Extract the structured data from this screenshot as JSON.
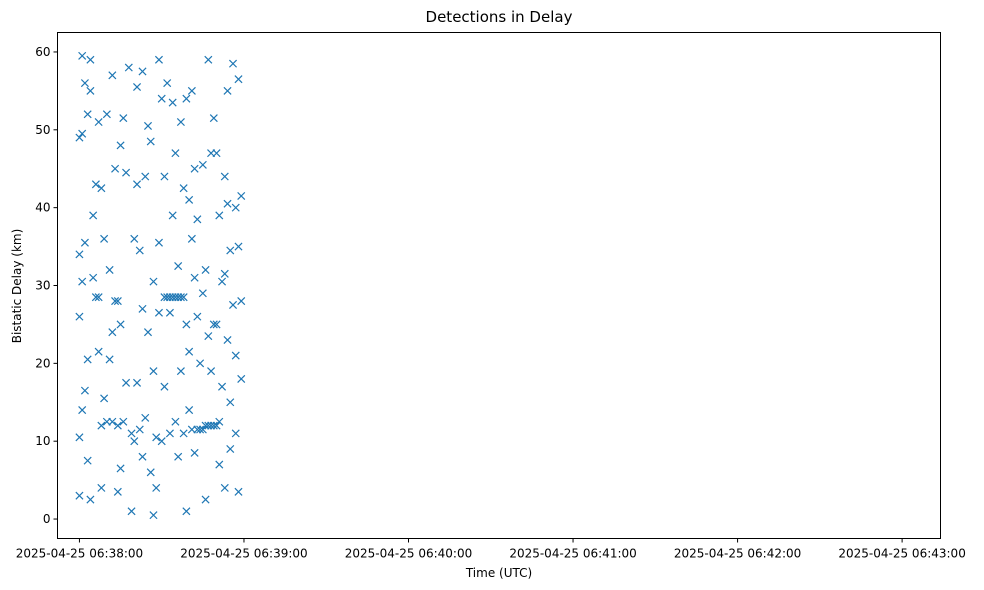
{
  "chart_data": {
    "type": "scatter",
    "title": "Detections in Delay",
    "xlabel": "Time (UTC)",
    "ylabel": "Bistatic Delay (km)",
    "x_unit": "time",
    "xlim": [
      "2025-04-25 06:37:52",
      "2025-04-25 06:43:14"
    ],
    "ylim": [
      -2.5,
      62.5
    ],
    "xticks": [
      {
        "value": "2025-04-25 06:38:00",
        "label": "2025-04-25 06:38:00"
      },
      {
        "value": "2025-04-25 06:39:00",
        "label": "2025-04-25 06:39:00"
      },
      {
        "value": "2025-04-25 06:40:00",
        "label": "2025-04-25 06:40:00"
      },
      {
        "value": "2025-04-25 06:41:00",
        "label": "2025-04-25 06:41:00"
      },
      {
        "value": "2025-04-25 06:42:00",
        "label": "2025-04-25 06:42:00"
      },
      {
        "value": "2025-04-25 06:43:00",
        "label": "2025-04-25 06:43:00"
      }
    ],
    "yticks": [
      {
        "value": 0,
        "label": "0"
      },
      {
        "value": 10,
        "label": "10"
      },
      {
        "value": 20,
        "label": "20"
      },
      {
        "value": 30,
        "label": "30"
      },
      {
        "value": 40,
        "label": "40"
      },
      {
        "value": 50,
        "label": "50"
      },
      {
        "value": 60,
        "label": "60"
      }
    ],
    "grid": false,
    "marker": "x",
    "color": "#1f77b4",
    "series": [
      {
        "points": [
          {
            "x": "2025-04-25 06:38:00",
            "y": 10.5
          },
          {
            "x": "2025-04-25 06:38:00",
            "y": 26.0
          },
          {
            "x": "2025-04-25 06:38:00",
            "y": 34.0
          },
          {
            "x": "2025-04-25 06:38:00",
            "y": 49.0
          },
          {
            "x": "2025-04-25 06:38:00",
            "y": 3.0
          },
          {
            "x": "2025-04-25 06:38:01",
            "y": 59.5
          },
          {
            "x": "2025-04-25 06:38:01",
            "y": 30.5
          },
          {
            "x": "2025-04-25 06:38:01",
            "y": 14.0
          },
          {
            "x": "2025-04-25 06:38:01",
            "y": 49.5
          },
          {
            "x": "2025-04-25 06:38:02",
            "y": 56.0
          },
          {
            "x": "2025-04-25 06:38:02",
            "y": 35.5
          },
          {
            "x": "2025-04-25 06:38:02",
            "y": 16.5
          },
          {
            "x": "2025-04-25 06:38:03",
            "y": 20.5
          },
          {
            "x": "2025-04-25 06:38:03",
            "y": 7.5
          },
          {
            "x": "2025-04-25 06:38:03",
            "y": 52.0
          },
          {
            "x": "2025-04-25 06:38:04",
            "y": 59.0
          },
          {
            "x": "2025-04-25 06:38:04",
            "y": 2.5
          },
          {
            "x": "2025-04-25 06:38:04",
            "y": 55.0
          },
          {
            "x": "2025-04-25 06:38:05",
            "y": 39.0
          },
          {
            "x": "2025-04-25 06:38:05",
            "y": 31.0
          },
          {
            "x": "2025-04-25 06:38:06",
            "y": 28.5
          },
          {
            "x": "2025-04-25 06:38:06",
            "y": 43.0
          },
          {
            "x": "2025-04-25 06:38:07",
            "y": 28.5
          },
          {
            "x": "2025-04-25 06:38:07",
            "y": 51.0
          },
          {
            "x": "2025-04-25 06:38:07",
            "y": 21.5
          },
          {
            "x": "2025-04-25 06:38:08",
            "y": 12.0
          },
          {
            "x": "2025-04-25 06:38:08",
            "y": 42.5
          },
          {
            "x": "2025-04-25 06:38:08",
            "y": 4.0
          },
          {
            "x": "2025-04-25 06:38:09",
            "y": 15.5
          },
          {
            "x": "2025-04-25 06:38:09",
            "y": 36.0
          },
          {
            "x": "2025-04-25 06:38:10",
            "y": 12.5
          },
          {
            "x": "2025-04-25 06:38:10",
            "y": 52.0
          },
          {
            "x": "2025-04-25 06:38:11",
            "y": 20.5
          },
          {
            "x": "2025-04-25 06:38:11",
            "y": 32.0
          },
          {
            "x": "2025-04-25 06:38:12",
            "y": 24.0
          },
          {
            "x": "2025-04-25 06:38:12",
            "y": 12.5
          },
          {
            "x": "2025-04-25 06:38:12",
            "y": 57.0
          },
          {
            "x": "2025-04-25 06:38:13",
            "y": 28.0
          },
          {
            "x": "2025-04-25 06:38:13",
            "y": 45.0
          },
          {
            "x": "2025-04-25 06:38:14",
            "y": 28.0
          },
          {
            "x": "2025-04-25 06:38:14",
            "y": 3.5
          },
          {
            "x": "2025-04-25 06:38:14",
            "y": 12.0
          },
          {
            "x": "2025-04-25 06:38:15",
            "y": 6.5
          },
          {
            "x": "2025-04-25 06:38:15",
            "y": 48.0
          },
          {
            "x": "2025-04-25 06:38:15",
            "y": 25.0
          },
          {
            "x": "2025-04-25 06:38:16",
            "y": 12.5
          },
          {
            "x": "2025-04-25 06:38:16",
            "y": 51.5
          },
          {
            "x": "2025-04-25 06:38:17",
            "y": 17.5
          },
          {
            "x": "2025-04-25 06:38:17",
            "y": 44.5
          },
          {
            "x": "2025-04-25 06:38:18",
            "y": 58.0
          },
          {
            "x": "2025-04-25 06:38:19",
            "y": 1.0
          },
          {
            "x": "2025-04-25 06:38:19",
            "y": 11.0
          },
          {
            "x": "2025-04-25 06:38:20",
            "y": 36.0
          },
          {
            "x": "2025-04-25 06:38:20",
            "y": 10.0
          },
          {
            "x": "2025-04-25 06:38:21",
            "y": 55.5
          },
          {
            "x": "2025-04-25 06:38:21",
            "y": 43.0
          },
          {
            "x": "2025-04-25 06:38:21",
            "y": 17.5
          },
          {
            "x": "2025-04-25 06:38:22",
            "y": 34.5
          },
          {
            "x": "2025-04-25 06:38:22",
            "y": 11.5
          },
          {
            "x": "2025-04-25 06:38:23",
            "y": 57.5
          },
          {
            "x": "2025-04-25 06:38:23",
            "y": 27.0
          },
          {
            "x": "2025-04-25 06:38:23",
            "y": 8.0
          },
          {
            "x": "2025-04-25 06:38:24",
            "y": 44.0
          },
          {
            "x": "2025-04-25 06:38:24",
            "y": 13.0
          },
          {
            "x": "2025-04-25 06:38:25",
            "y": 50.5
          },
          {
            "x": "2025-04-25 06:38:25",
            "y": 24.0
          },
          {
            "x": "2025-04-25 06:38:26",
            "y": 6.0
          },
          {
            "x": "2025-04-25 06:38:26",
            "y": 48.5
          },
          {
            "x": "2025-04-25 06:38:27",
            "y": 0.5
          },
          {
            "x": "2025-04-25 06:38:27",
            "y": 30.5
          },
          {
            "x": "2025-04-25 06:38:27",
            "y": 19.0
          },
          {
            "x": "2025-04-25 06:38:28",
            "y": 10.5
          },
          {
            "x": "2025-04-25 06:38:28",
            "y": 4.0
          },
          {
            "x": "2025-04-25 06:38:29",
            "y": 35.5
          },
          {
            "x": "2025-04-25 06:38:29",
            "y": 59.0
          },
          {
            "x": "2025-04-25 06:38:29",
            "y": 26.5
          },
          {
            "x": "2025-04-25 06:38:30",
            "y": 54.0
          },
          {
            "x": "2025-04-25 06:38:30",
            "y": 10.0
          },
          {
            "x": "2025-04-25 06:38:31",
            "y": 28.5
          },
          {
            "x": "2025-04-25 06:38:31",
            "y": 17.0
          },
          {
            "x": "2025-04-25 06:38:31",
            "y": 44.0
          },
          {
            "x": "2025-04-25 06:38:32",
            "y": 28.5
          },
          {
            "x": "2025-04-25 06:38:32",
            "y": 56.0
          },
          {
            "x": "2025-04-25 06:38:33",
            "y": 28.5
          },
          {
            "x": "2025-04-25 06:38:33",
            "y": 11.0
          },
          {
            "x": "2025-04-25 06:38:33",
            "y": 26.5
          },
          {
            "x": "2025-04-25 06:38:34",
            "y": 28.5
          },
          {
            "x": "2025-04-25 06:38:34",
            "y": 39.0
          },
          {
            "x": "2025-04-25 06:38:34",
            "y": 53.5
          },
          {
            "x": "2025-04-25 06:38:35",
            "y": 28.5
          },
          {
            "x": "2025-04-25 06:38:35",
            "y": 12.5
          },
          {
            "x": "2025-04-25 06:38:35",
            "y": 47.0
          },
          {
            "x": "2025-04-25 06:38:36",
            "y": 28.5
          },
          {
            "x": "2025-04-25 06:38:36",
            "y": 8.0
          },
          {
            "x": "2025-04-25 06:38:36",
            "y": 32.5
          },
          {
            "x": "2025-04-25 06:38:37",
            "y": 28.5
          },
          {
            "x": "2025-04-25 06:38:37",
            "y": 51.0
          },
          {
            "x": "2025-04-25 06:38:37",
            "y": 19.0
          },
          {
            "x": "2025-04-25 06:38:38",
            "y": 28.5
          },
          {
            "x": "2025-04-25 06:38:38",
            "y": 11.0
          },
          {
            "x": "2025-04-25 06:38:38",
            "y": 42.5
          },
          {
            "x": "2025-04-25 06:38:39",
            "y": 54.0
          },
          {
            "x": "2025-04-25 06:38:39",
            "y": 25.0
          },
          {
            "x": "2025-04-25 06:38:39",
            "y": 1.0
          },
          {
            "x": "2025-04-25 06:38:40",
            "y": 41.0
          },
          {
            "x": "2025-04-25 06:38:40",
            "y": 14.0
          },
          {
            "x": "2025-04-25 06:38:40",
            "y": 21.5
          },
          {
            "x": "2025-04-25 06:38:41",
            "y": 55.0
          },
          {
            "x": "2025-04-25 06:38:41",
            "y": 36.0
          },
          {
            "x": "2025-04-25 06:38:41",
            "y": 11.5
          },
          {
            "x": "2025-04-25 06:38:42",
            "y": 31.0
          },
          {
            "x": "2025-04-25 06:38:42",
            "y": 8.5
          },
          {
            "x": "2025-04-25 06:38:42",
            "y": 45.0
          },
          {
            "x": "2025-04-25 06:38:43",
            "y": 26.0
          },
          {
            "x": "2025-04-25 06:38:43",
            "y": 11.5
          },
          {
            "x": "2025-04-25 06:38:43",
            "y": 38.5
          },
          {
            "x": "2025-04-25 06:38:44",
            "y": 20.0
          },
          {
            "x": "2025-04-25 06:38:44",
            "y": 11.5
          },
          {
            "x": "2025-04-25 06:38:45",
            "y": 45.5
          },
          {
            "x": "2025-04-25 06:38:45",
            "y": 29.0
          },
          {
            "x": "2025-04-25 06:38:45",
            "y": 11.5
          },
          {
            "x": "2025-04-25 06:38:46",
            "y": 32.0
          },
          {
            "x": "2025-04-25 06:38:46",
            "y": 12.0
          },
          {
            "x": "2025-04-25 06:38:46",
            "y": 2.5
          },
          {
            "x": "2025-04-25 06:38:47",
            "y": 59.0
          },
          {
            "x": "2025-04-25 06:38:47",
            "y": 12.0
          },
          {
            "x": "2025-04-25 06:38:47",
            "y": 23.5
          },
          {
            "x": "2025-04-25 06:38:48",
            "y": 47.0
          },
          {
            "x": "2025-04-25 06:38:48",
            "y": 12.0
          },
          {
            "x": "2025-04-25 06:38:48",
            "y": 19.0
          },
          {
            "x": "2025-04-25 06:38:49",
            "y": 51.5
          },
          {
            "x": "2025-04-25 06:38:49",
            "y": 25.0
          },
          {
            "x": "2025-04-25 06:38:49",
            "y": 12.0
          },
          {
            "x": "2025-04-25 06:38:50",
            "y": 47.0
          },
          {
            "x": "2025-04-25 06:38:50",
            "y": 25.0
          },
          {
            "x": "2025-04-25 06:38:50",
            "y": 12.0
          },
          {
            "x": "2025-04-25 06:38:51",
            "y": 39.0
          },
          {
            "x": "2025-04-25 06:38:51",
            "y": 12.5
          },
          {
            "x": "2025-04-25 06:38:51",
            "y": 7.0
          },
          {
            "x": "2025-04-25 06:38:52",
            "y": 30.5
          },
          {
            "x": "2025-04-25 06:38:52",
            "y": 17.0
          },
          {
            "x": "2025-04-25 06:38:53",
            "y": 44.0
          },
          {
            "x": "2025-04-25 06:38:53",
            "y": 31.5
          },
          {
            "x": "2025-04-25 06:38:53",
            "y": 4.0
          },
          {
            "x": "2025-04-25 06:38:54",
            "y": 55.0
          },
          {
            "x": "2025-04-25 06:38:54",
            "y": 40.5
          },
          {
            "x": "2025-04-25 06:38:54",
            "y": 23.0
          },
          {
            "x": "2025-04-25 06:38:55",
            "y": 34.5
          },
          {
            "x": "2025-04-25 06:38:55",
            "y": 15.0
          },
          {
            "x": "2025-04-25 06:38:55",
            "y": 9.0
          },
          {
            "x": "2025-04-25 06:38:56",
            "y": 58.5
          },
          {
            "x": "2025-04-25 06:38:56",
            "y": 27.5
          },
          {
            "x": "2025-04-25 06:38:57",
            "y": 40.0
          },
          {
            "x": "2025-04-25 06:38:57",
            "y": 11.0
          },
          {
            "x": "2025-04-25 06:38:57",
            "y": 21.0
          },
          {
            "x": "2025-04-25 06:38:58",
            "y": 56.5
          },
          {
            "x": "2025-04-25 06:38:58",
            "y": 35.0
          },
          {
            "x": "2025-04-25 06:38:58",
            "y": 3.5
          },
          {
            "x": "2025-04-25 06:38:59",
            "y": 41.5
          },
          {
            "x": "2025-04-25 06:38:59",
            "y": 18.0
          },
          {
            "x": "2025-04-25 06:38:59",
            "y": 28.0
          }
        ]
      }
    ]
  }
}
